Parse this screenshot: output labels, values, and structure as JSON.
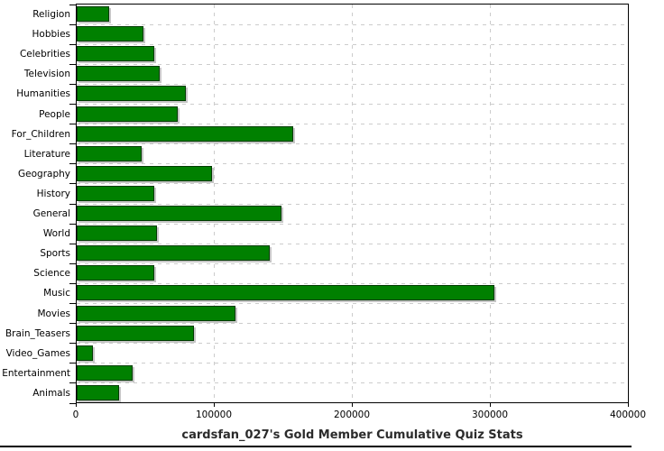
{
  "title": "cardsfan_027's Gold Member Cumulative Quiz Stats",
  "colors": {
    "bar_fill": "#008000",
    "bar_border": "#003b00",
    "bar_shadow": "#c6c6c6",
    "grid": "#cccccc",
    "axis": "#000000",
    "title_text": "#2b2b2b",
    "background": "#ffffff"
  },
  "chart_data": {
    "type": "bar",
    "orientation": "horizontal",
    "title": "cardsfan_027's Gold Member Cumulative Quiz Stats",
    "xlabel": "",
    "ylabel": "",
    "categories": [
      "Religion",
      "Hobbies",
      "Celebrities",
      "Television",
      "Humanities",
      "People",
      "For_Children",
      "Literature",
      "Geography",
      "History",
      "General",
      "World",
      "Sports",
      "Science",
      "Music",
      "Movies",
      "Brain_Teasers",
      "Video_Games",
      "Entertainment",
      "Animals"
    ],
    "values": [
      23500,
      48500,
      56500,
      60000,
      79000,
      73000,
      157000,
      47000,
      98000,
      56500,
      148500,
      58000,
      140000,
      56500,
      302500,
      115000,
      85000,
      12000,
      40500,
      31000
    ],
    "xlim": [
      0,
      400000
    ],
    "x_ticks": [
      0,
      100000,
      200000,
      300000,
      400000
    ],
    "x_tick_labels": [
      "0",
      "100000",
      "200000",
      "300000",
      "400000"
    ],
    "grid": true,
    "legend": false,
    "bar_color": "#008000"
  }
}
